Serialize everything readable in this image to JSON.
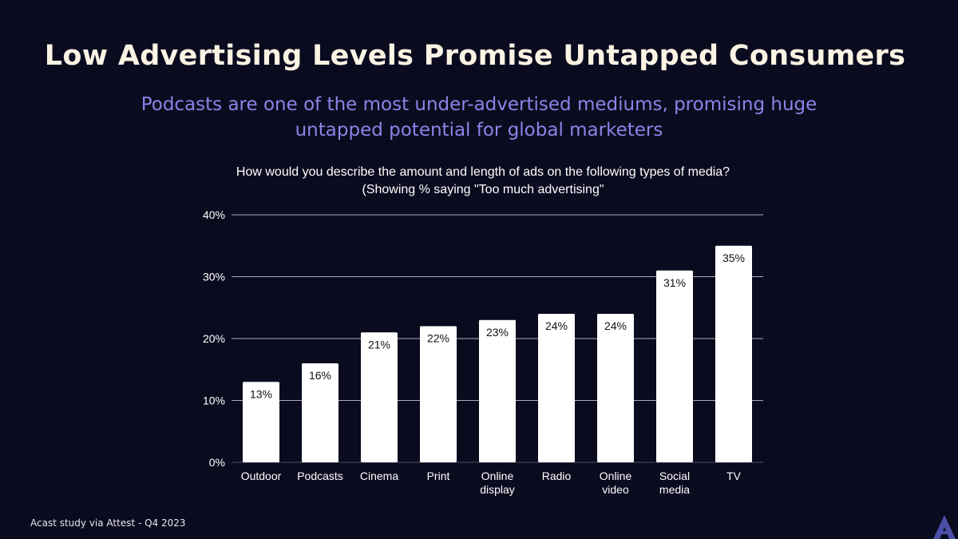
{
  "slide": {
    "title": "Low Advertising Levels Promise Untapped Consumers",
    "subtitle": "Podcasts are one of the most under-advertised mediums, promising huge untapped potential for global marketers",
    "source": "Acast study via Attest - Q4 2023",
    "logo_letter": "A"
  },
  "colors": {
    "background": "#0b0b1f",
    "title": "#fbf3e3",
    "subtitle": "#8b84e8",
    "bar": "#ffffff",
    "grid": "#c8c8d8",
    "logo": "#4a4fa8"
  },
  "chart_data": {
    "type": "bar",
    "title_lines": [
      "How would you describe the amount and length of ads on the following types of media?",
      "(Showing % saying \"Too much advertising\""
    ],
    "categories": [
      [
        "Outdoor"
      ],
      [
        "Podcasts"
      ],
      [
        "Cinema"
      ],
      [
        "Print"
      ],
      [
        "Online",
        "display"
      ],
      [
        "Radio"
      ],
      [
        "Online",
        "video"
      ],
      [
        "Social",
        "media"
      ],
      [
        "TV"
      ]
    ],
    "values": [
      13,
      16,
      21,
      22,
      23,
      24,
      24,
      31,
      35
    ],
    "value_labels": [
      "13%",
      "16%",
      "21%",
      "22%",
      "23%",
      "24%",
      "24%",
      "31%",
      "35%"
    ],
    "ylim": [
      0,
      40
    ],
    "yticks": [
      0,
      10,
      20,
      30,
      40
    ],
    "ytick_labels": [
      "0%",
      "10%",
      "20%",
      "30%",
      "40%"
    ],
    "grid": true,
    "legend": "none"
  }
}
